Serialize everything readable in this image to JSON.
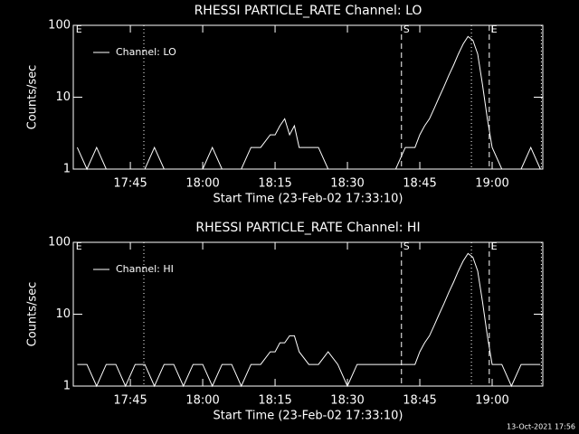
{
  "chart_data": [
    {
      "type": "line",
      "title": "RHESSI PARTICLE_RATE Channel: LO",
      "xlabel": "Start Time (23-Feb-02 17:33:10)",
      "ylabel": "Counts/sec",
      "log_y": true,
      "legend": "upper left",
      "x": [
        1054,
        1056,
        1058,
        1060,
        1062,
        1064,
        1066,
        1068,
        1070,
        1072,
        1074,
        1076,
        1078,
        1080,
        1082,
        1084,
        1086,
        1088,
        1090,
        1092,
        1094,
        1095,
        1096,
        1097,
        1098,
        1099,
        1100,
        1102,
        1104,
        1106,
        1108,
        1110,
        1112,
        1114,
        1116,
        1118,
        1120,
        1122,
        1124,
        1125,
        1126,
        1127,
        1128,
        1129,
        1130,
        1131,
        1132,
        1133,
        1134,
        1135,
        1136,
        1137,
        1138,
        1139,
        1140,
        1142,
        1144,
        1146,
        1148,
        1150
      ],
      "series": [
        {
          "name": "Channel: LO",
          "color": "#ffffff",
          "values": [
            2,
            1,
            2,
            1,
            1,
            1,
            1,
            1,
            2,
            1,
            1,
            1,
            1,
            1,
            2,
            1,
            1,
            1,
            2,
            2,
            3,
            3,
            4,
            5,
            3,
            4,
            2,
            2,
            2,
            1,
            1,
            1,
            1,
            1,
            1,
            1,
            1,
            2,
            2,
            3,
            4,
            5,
            7,
            10,
            14,
            20,
            28,
            40,
            55,
            70,
            62,
            40,
            15,
            5,
            2,
            1,
            1,
            1,
            2,
            1
          ]
        }
      ],
      "xlim": [
        1053.17,
        1150.5
      ],
      "xticks": [
        {
          "value": 1065,
          "label": "17:45"
        },
        {
          "value": 1080,
          "label": "18:00"
        },
        {
          "value": 1095,
          "label": "18:15"
        },
        {
          "value": 1110,
          "label": "18:30"
        },
        {
          "value": 1125,
          "label": "18:45"
        },
        {
          "value": 1140,
          "label": "19:00"
        }
      ],
      "ylim": [
        1,
        100
      ],
      "yticks": [
        1,
        10,
        100
      ],
      "vlines": [
        {
          "x": 1067.8,
          "style": "dotted"
        },
        {
          "x": 1121.2,
          "style": "dashed"
        },
        {
          "x": 1135.7,
          "style": "dotted"
        },
        {
          "x": 1139.4,
          "style": "dashed"
        },
        {
          "x": 1150.2,
          "style": "dotted"
        }
      ],
      "annotations": [
        {
          "text": "E",
          "x": 1053.3
        },
        {
          "text": "S",
          "x": 1121.2
        },
        {
          "text": "E",
          "x": 1139.4
        }
      ]
    },
    {
      "type": "line",
      "title": "RHESSI PARTICLE_RATE Channel: HI",
      "xlabel": "Start Time (23-Feb-02 17:33:10)",
      "ylabel": "Counts/sec",
      "log_y": true,
      "legend": "upper left",
      "x": [
        1054,
        1056,
        1058,
        1060,
        1062,
        1064,
        1066,
        1068,
        1070,
        1072,
        1074,
        1076,
        1078,
        1080,
        1082,
        1084,
        1086,
        1088,
        1090,
        1092,
        1094,
        1095,
        1096,
        1097,
        1098,
        1099,
        1100,
        1102,
        1104,
        1106,
        1108,
        1110,
        1112,
        1114,
        1116,
        1118,
        1120,
        1122,
        1124,
        1125,
        1126,
        1127,
        1128,
        1129,
        1130,
        1131,
        1132,
        1133,
        1134,
        1135,
        1136,
        1137,
        1138,
        1139,
        1140,
        1142,
        1144,
        1146,
        1148,
        1150
      ],
      "series": [
        {
          "name": "Channel: HI",
          "color": "#ffffff",
          "values": [
            2,
            2,
            1,
            2,
            2,
            1,
            2,
            2,
            1,
            2,
            2,
            1,
            2,
            2,
            1,
            2,
            2,
            1,
            2,
            2,
            3,
            3,
            4,
            4,
            5,
            5,
            3,
            2,
            2,
            3,
            2,
            1,
            2,
            2,
            2,
            2,
            2,
            2,
            2,
            3,
            4,
            5,
            7,
            10,
            14,
            20,
            28,
            40,
            55,
            70,
            62,
            40,
            15,
            5,
            2,
            2,
            1,
            2,
            2,
            2
          ]
        }
      ],
      "xlim": [
        1053.17,
        1150.5
      ],
      "xticks": [
        {
          "value": 1065,
          "label": "17:45"
        },
        {
          "value": 1080,
          "label": "18:00"
        },
        {
          "value": 1095,
          "label": "18:15"
        },
        {
          "value": 1110,
          "label": "18:30"
        },
        {
          "value": 1125,
          "label": "18:45"
        },
        {
          "value": 1140,
          "label": "19:00"
        }
      ],
      "ylim": [
        1,
        100
      ],
      "yticks": [
        1,
        10,
        100
      ],
      "vlines": [
        {
          "x": 1067.8,
          "style": "dotted"
        },
        {
          "x": 1121.2,
          "style": "dashed"
        },
        {
          "x": 1135.7,
          "style": "dotted"
        },
        {
          "x": 1139.4,
          "style": "dashed"
        },
        {
          "x": 1150.2,
          "style": "dotted"
        }
      ],
      "annotations": [
        {
          "text": "E",
          "x": 1053.3
        },
        {
          "text": "S",
          "x": 1121.2
        },
        {
          "text": "E",
          "x": 1139.4
        }
      ]
    }
  ],
  "footer": "13-Oct-2021 17:56"
}
